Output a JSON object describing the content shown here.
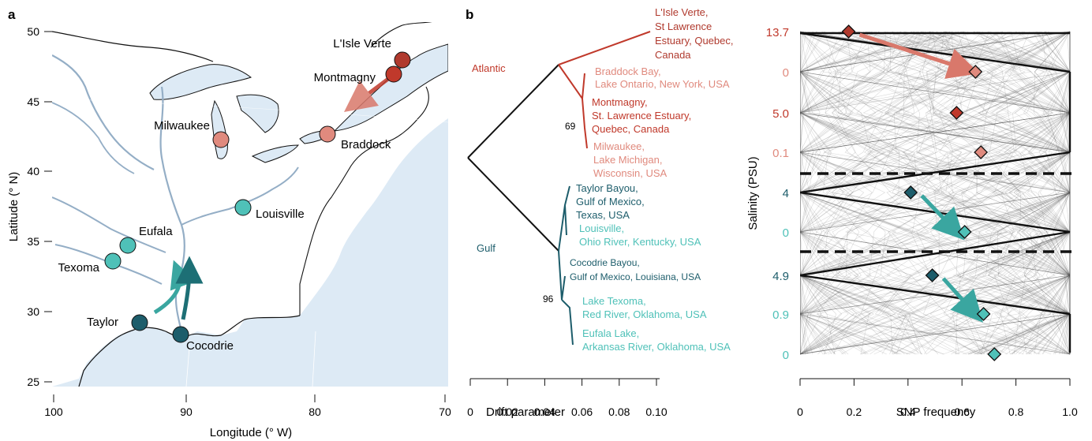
{
  "panels": {
    "a": {
      "label": "a",
      "xlabel": "Longitude (° W)",
      "ylabel": "Latitude (° N)",
      "lat_ticks": [
        "50",
        "45",
        "40",
        "35",
        "30",
        "25"
      ],
      "lon_ticks": [
        "100",
        "90",
        "80",
        "70"
      ],
      "sites": [
        {
          "name": "L'Isle Verte",
          "color": "#b03a2e"
        },
        {
          "name": "Montmagny",
          "color": "#c0392b"
        },
        {
          "name": "Milwaukee",
          "color": "#e08a7e"
        },
        {
          "name": "Braddock",
          "color": "#e08a7e"
        },
        {
          "name": "Louisville",
          "color": "#4fc1b8"
        },
        {
          "name": "Eufala",
          "color": "#4fc1b8"
        },
        {
          "name": "Texoma",
          "color": "#4fc1b8"
        },
        {
          "name": "Taylor",
          "color": "#1d5d6b"
        },
        {
          "name": "Cocodrie",
          "color": "#1d5d6b"
        }
      ]
    },
    "b": {
      "label": "b",
      "xlabel": "Drift parameter",
      "x_ticks": [
        "0",
        "0.02",
        "0.04",
        "0.06",
        "0.08",
        "0.10"
      ],
      "clades": [
        {
          "name": "Atlantic",
          "color": "#c0392b",
          "bootstrap": ""
        },
        {
          "name": "Gulf",
          "color": "#1d5d6b",
          "bootstrap": ""
        }
      ],
      "bootstraps": [
        "69",
        "96"
      ],
      "tips": [
        {
          "lines": [
            "L'Isle Verte,",
            "St Lawrence",
            "Estuary, Quebec,",
            "Canada"
          ],
          "color": "#b03a2e"
        },
        {
          "lines": [
            "Braddock Bay,",
            "Lake Ontario, New York, USA"
          ],
          "color": "#e08a7e"
        },
        {
          "lines": [
            "Montmagny,",
            "St. Lawrence Estuary,",
            "Quebec, Canada"
          ],
          "color": "#c0392b"
        },
        {
          "lines": [
            "Milwaukee,",
            "Lake Michigan,",
            "Wisconsin, USA"
          ],
          "color": "#e08a7e"
        },
        {
          "lines": [
            "Taylor Bayou,",
            "Gulf of Mexico,",
            "Texas, USA"
          ],
          "color": "#1d5d6b"
        },
        {
          "lines": [
            "Louisville,",
            "Ohio River, Kentucky, USA"
          ],
          "color": "#4fc1b8"
        },
        {
          "lines": [
            "Cocodrie Bayou,",
            "Gulf of Mexico, Louisiana, USA"
          ],
          "color": "#1d5d6b"
        },
        {
          "lines": [
            "Lake Texoma,",
            "Red River, Oklahoma, USA"
          ],
          "color": "#4fc1b8"
        },
        {
          "lines": [
            "Eufala Lake,",
            "Arkansas River, Oklahoma, USA"
          ],
          "color": "#4fc1b8"
        }
      ]
    },
    "c": {
      "xlabel": "SNP frequency",
      "ylabel": "Salinity (PSU)",
      "x_ticks": [
        "0",
        "0.2",
        "0.4",
        "0.6",
        "0.8",
        "1.0"
      ]
    }
  },
  "chart_data": [
    {
      "type": "map",
      "xlabel": "Longitude (° W)",
      "ylabel": "Latitude (° N)",
      "lat_ticks": [
        50,
        45,
        40,
        35,
        30,
        25
      ],
      "lon_ticks": [
        100,
        90,
        80,
        70
      ]
    },
    {
      "type": "tree",
      "xlabel": "Drift parameter",
      "xlim": [
        0,
        0.1
      ],
      "x_ticks": [
        0,
        0.02,
        0.04,
        0.06,
        0.08,
        0.1
      ],
      "bootstraps": [
        69,
        96
      ]
    },
    {
      "type": "scatter",
      "xlabel": "SNP frequency",
      "ylabel": "Salinity (PSU)",
      "xlim": [
        0,
        1.0
      ],
      "x_ticks": [
        0,
        0.2,
        0.4,
        0.6,
        0.8,
        1.0
      ],
      "salinity_labels": [
        {
          "label": "13.7",
          "color": "#c0392b"
        },
        {
          "label": "0",
          "color": "#e08a7e"
        },
        {
          "label": "5.0",
          "color": "#c0392b"
        },
        {
          "label": "0.1",
          "color": "#e08a7e"
        },
        {
          "label": "4",
          "color": "#1d5d6b"
        },
        {
          "label": "0",
          "color": "#4fc1b8"
        },
        {
          "label": "4.9",
          "color": "#1d5d6b"
        },
        {
          "label": "0.9",
          "color": "#4fc1b8"
        },
        {
          "label": "0",
          "color": "#4fc1b8"
        }
      ],
      "points": [
        {
          "salinity": "13.7",
          "x": 0.18,
          "color": "#b03a2e"
        },
        {
          "salinity": "0",
          "x": 0.65,
          "color": "#e08a7e"
        },
        {
          "salinity": "5.0",
          "x": 0.58,
          "color": "#c0392b"
        },
        {
          "salinity": "0.1",
          "x": 0.67,
          "color": "#e08a7e"
        },
        {
          "salinity": "4",
          "x": 0.41,
          "color": "#1d5d6b"
        },
        {
          "salinity": "0",
          "x": 0.61,
          "color": "#4fc1b8"
        },
        {
          "salinity": "4.9",
          "x": 0.49,
          "color": "#1d5d6b"
        },
        {
          "salinity": "0.9",
          "x": 0.68,
          "color": "#4fc1b8"
        },
        {
          "salinity": "0",
          "x": 0.72,
          "color": "#4fc1b8"
        }
      ],
      "arrows": [
        {
          "from": [
            0.18,
            "13.7"
          ],
          "to": [
            0.65,
            "0"
          ],
          "color": "#d9786b"
        },
        {
          "from": [
            0.41,
            "4"
          ],
          "to": [
            0.61,
            "0"
          ],
          "color": "#3aa6a0"
        },
        {
          "from": [
            0.49,
            "4.9"
          ],
          "to": [
            0.68,
            "0.9"
          ],
          "color": "#3aa6a0"
        }
      ]
    }
  ]
}
